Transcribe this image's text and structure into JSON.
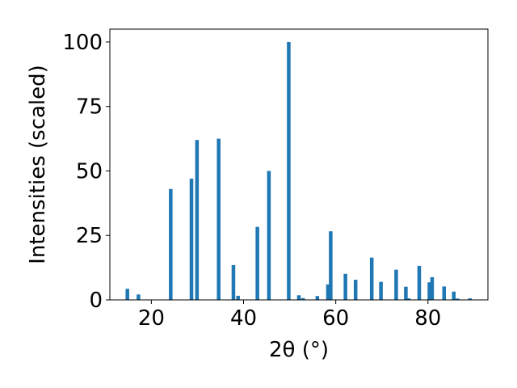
{
  "chart_data": {
    "type": "bar",
    "title": "",
    "xlabel": "2θ (°)",
    "ylabel": "Intensities (scaled)",
    "xlim": [
      11,
      93
    ],
    "ylim": [
      0,
      105
    ],
    "grid": false,
    "bar_color": "#1f77b4",
    "x_ticks": [
      {
        "value": 20,
        "label": "20"
      },
      {
        "value": 40,
        "label": "40"
      },
      {
        "value": 60,
        "label": "60"
      },
      {
        "value": 80,
        "label": "80"
      }
    ],
    "y_ticks": [
      {
        "value": 0,
        "label": "0"
      },
      {
        "value": 25,
        "label": "25"
      },
      {
        "value": 50,
        "label": "50"
      },
      {
        "value": 75,
        "label": "75"
      },
      {
        "value": 100,
        "label": "100"
      }
    ],
    "series": [
      {
        "x": [
          14.8,
          17.2,
          24.2,
          28.7,
          29.9,
          34.6,
          37.8,
          38.8,
          43.0,
          45.5,
          49.8,
          52.0,
          52.9,
          56.0,
          58.3,
          58.9,
          62.1,
          64.3,
          67.8,
          69.8,
          73.1,
          75.2,
          75.8,
          78.1,
          80.3,
          80.9,
          83.5,
          85.6,
          86.4,
          89.1
        ],
        "values": [
          4.3,
          2.1,
          43.0,
          47.0,
          62.0,
          62.5,
          13.5,
          1.6,
          28.3,
          50.0,
          100.0,
          1.8,
          0.7,
          1.5,
          6.0,
          26.6,
          10.1,
          7.8,
          16.4,
          7.0,
          11.7,
          5.1,
          0.6,
          13.2,
          6.8,
          8.8,
          5.2,
          3.2,
          0.5,
          0.6
        ]
      }
    ]
  }
}
